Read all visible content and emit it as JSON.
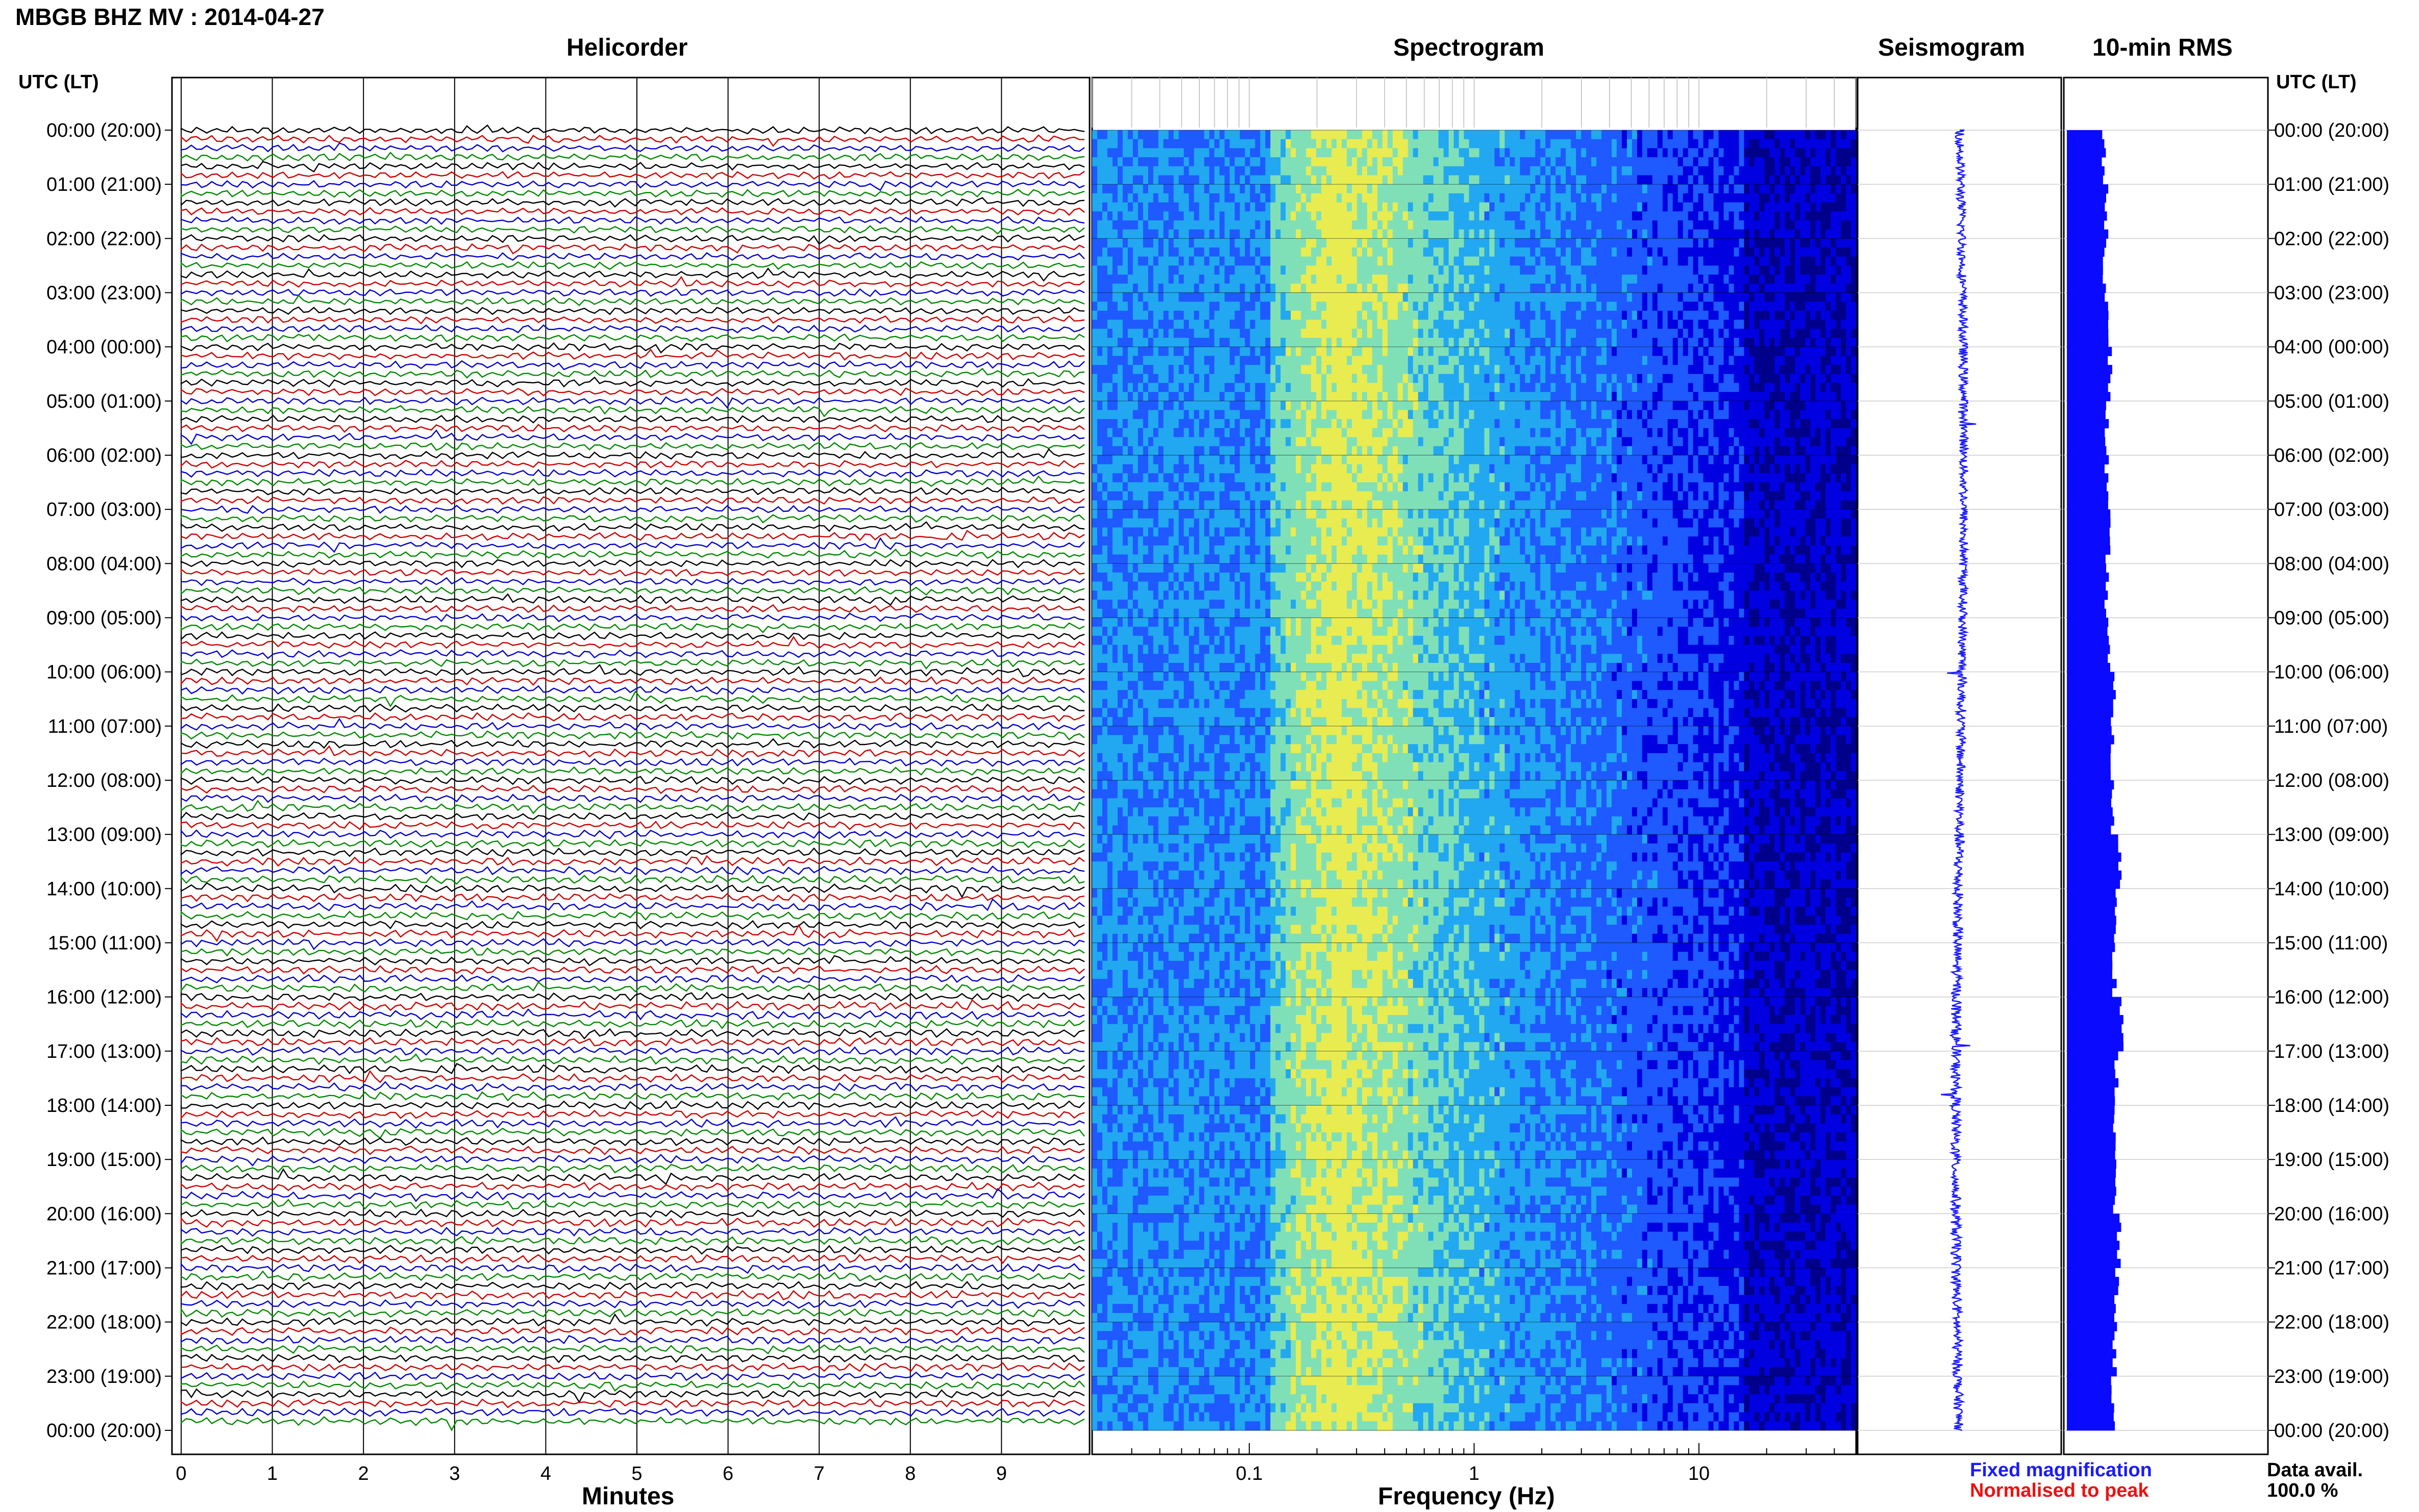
{
  "header": {
    "title": "MBGB BHZ MV : 2014-04-27",
    "utc_label_left": "UTC (LT)",
    "utc_label_right": "UTC (LT)"
  },
  "panels": {
    "helicorder": "Helicorder",
    "spectrogram": "Spectrogram",
    "seismogram": "Seismogram",
    "rms": "10-min RMS"
  },
  "axes": {
    "minutes_label": "Minutes",
    "frequency_label": "Frequency (Hz)"
  },
  "legend": {
    "fixed": "Fixed magnification",
    "normalised": "Normalised to peak"
  },
  "availability": {
    "label": "Data avail.",
    "value": "100.0 %"
  },
  "colors": {
    "trace_cycle": [
      "#000000",
      "#cc0000",
      "#0000cc",
      "#008800"
    ],
    "seismogram": "#1a1aff",
    "rms": "#0a0aff",
    "fixed_text": "#1a1aff",
    "normalised_text": "#ee1111"
  },
  "chart_data": [
    {
      "type": "line",
      "name": "Helicorder",
      "xlabel": "Minutes",
      "x_ticks": [
        0,
        1,
        2,
        3,
        4,
        5,
        6,
        7,
        8,
        9
      ],
      "xlim": [
        0,
        10
      ],
      "traces_per_hour": 6,
      "time_ticks": [
        "00:00 (20:00)",
        "01:00 (21:00)",
        "02:00 (22:00)",
        "03:00 (23:00)",
        "04:00 (00:00)",
        "05:00 (01:00)",
        "06:00 (02:00)",
        "07:00 (03:00)",
        "08:00 (04:00)",
        "09:00 (05:00)",
        "10:00 (06:00)",
        "11:00 (07:00)",
        "12:00 (08:00)",
        "13:00 (09:00)",
        "14:00 (10:00)",
        "15:00 (11:00)",
        "16:00 (12:00)",
        "17:00 (13:00)",
        "18:00 (14:00)",
        "19:00 (15:00)",
        "20:00 (16:00)",
        "21:00 (17:00)",
        "22:00 (18:00)",
        "23:00 (19:00)",
        "00:00 (20:00)"
      ]
    },
    {
      "type": "heatmap",
      "name": "Spectrogram",
      "xlabel": "Frequency (Hz)",
      "x_scale": "log",
      "xlim": [
        0.02,
        50
      ],
      "x_tick_labels": [
        "0.1",
        "1",
        "10"
      ],
      "colormap": [
        "#00008b",
        "#0000e0",
        "#1e5aff",
        "#22a8f0",
        "#7fe0b8",
        "#e8ec50"
      ]
    },
    {
      "type": "line",
      "name": "Seismogram",
      "orientation": "vertical"
    },
    {
      "type": "bar",
      "name": "10-min RMS",
      "orientation": "horizontal",
      "hourly_relative_amplitude": [
        0.55,
        0.6,
        0.58,
        0.6,
        0.65,
        0.6,
        0.6,
        0.62,
        0.6,
        0.62,
        0.7,
        0.68,
        0.68,
        0.8,
        0.75,
        0.72,
        0.82,
        0.75,
        0.72,
        0.72,
        0.78,
        0.75,
        0.72,
        0.7
      ]
    }
  ]
}
